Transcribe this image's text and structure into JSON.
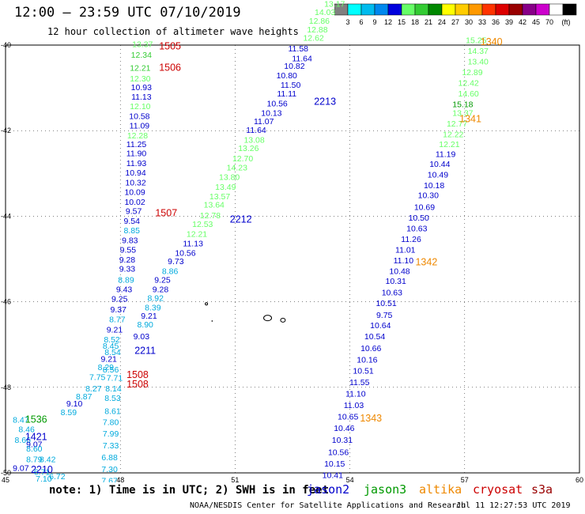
{
  "title": "12:00 – 23:59 UTC 07/10/2019",
  "subtitle": "12 hour collection of altimeter wave heights",
  "note": "note:  1) Time is in UTC; 2) SWH is in feet",
  "credit": "NOAA/NESDIS Center for Satellite Applications and Research",
  "timestamp": "Jul 11 12:27:53 UTC 2019",
  "satellites": [
    {
      "name": "jason2",
      "color": "#0000cc"
    },
    {
      "name": "jason3",
      "color": "#009900"
    },
    {
      "name": "altika",
      "color": "#ee8800"
    },
    {
      "name": "cryosat",
      "color": "#cc0000"
    },
    {
      "name": "s3a",
      "color": "#990000"
    }
  ],
  "colorbar": {
    "colors": [
      "#808080",
      "#00ffff",
      "#00bbee",
      "#0088ee",
      "#0000dd",
      "#66ff66",
      "#33cc33",
      "#008800",
      "#ffff00",
      "#ffcc00",
      "#ff9900",
      "#ff3300",
      "#dd0000",
      "#990000",
      "#880088",
      "#cc00cc",
      "#ffffff",
      "#000000"
    ],
    "labels": [
      "3",
      "6",
      "9",
      "12",
      "15",
      "18",
      "21",
      "24",
      "27",
      "30",
      "33",
      "36",
      "39",
      "42",
      "45",
      "70",
      "(ft)"
    ]
  },
  "chart_data": {
    "type": "scatter",
    "xlim": [
      45,
      60
    ],
    "ylim": [
      -50,
      -40
    ],
    "x_ticks": [
      "45",
      "48",
      "51",
      "54",
      "57",
      "60"
    ],
    "y_ticks": [
      "-40",
      "-42",
      "-44",
      "-46",
      "-48",
      "-50"
    ],
    "grid": true,
    "points": [
      {
        "lon": 48.58,
        "lat": -40.05,
        "v": "13.37",
        "c": "#66ff66"
      },
      {
        "lon": 48.55,
        "lat": -40.3,
        "v": "12.34",
        "c": "#33cc33"
      },
      {
        "lon": 48.52,
        "lat": -40.6,
        "v": "12.21",
        "c": "#33cc33"
      },
      {
        "lon": 48.52,
        "lat": -40.85,
        "v": "12.30",
        "c": "#66ff66"
      },
      {
        "lon": 48.55,
        "lat": -41.05,
        "v": "10.93",
        "c": "#0000cc"
      },
      {
        "lon": 48.55,
        "lat": -41.28,
        "v": "11.13",
        "c": "#0000cc"
      },
      {
        "lon": 48.52,
        "lat": -41.5,
        "v": "12.10",
        "c": "#66ff66"
      },
      {
        "lon": 48.5,
        "lat": -41.73,
        "v": "10.58",
        "c": "#0000cc"
      },
      {
        "lon": 48.5,
        "lat": -41.95,
        "v": "11.09",
        "c": "#0000cc"
      },
      {
        "lon": 48.45,
        "lat": -42.18,
        "v": "12.28",
        "c": "#66ff66"
      },
      {
        "lon": 48.42,
        "lat": -42.38,
        "v": "11.25",
        "c": "#0000cc"
      },
      {
        "lon": 48.42,
        "lat": -42.6,
        "v": "11.90",
        "c": "#0000cc"
      },
      {
        "lon": 48.42,
        "lat": -42.83,
        "v": "11.93",
        "c": "#0000cc"
      },
      {
        "lon": 48.4,
        "lat": -43.05,
        "v": "10.94",
        "c": "#0000cc"
      },
      {
        "lon": 48.4,
        "lat": -43.28,
        "v": "10.32",
        "c": "#0000cc"
      },
      {
        "lon": 48.38,
        "lat": -43.5,
        "v": "10.09",
        "c": "#0000cc"
      },
      {
        "lon": 48.38,
        "lat": -43.73,
        "v": "10.02",
        "c": "#0000cc"
      },
      {
        "lon": 48.35,
        "lat": -43.95,
        "v": "9.57",
        "c": "#0000cc"
      },
      {
        "lon": 48.3,
        "lat": -44.18,
        "v": "9.54",
        "c": "#0000cc"
      },
      {
        "lon": 48.3,
        "lat": -44.4,
        "v": "8.85",
        "c": "#00aadd"
      },
      {
        "lon": 48.25,
        "lat": -44.63,
        "v": "9.83",
        "c": "#0000cc"
      },
      {
        "lon": 48.2,
        "lat": -44.85,
        "v": "9.55",
        "c": "#0000cc"
      },
      {
        "lon": 48.18,
        "lat": -45.08,
        "v": "9.28",
        "c": "#0000cc"
      },
      {
        "lon": 48.18,
        "lat": -45.3,
        "v": "9.33",
        "c": "#0000cc"
      },
      {
        "lon": 48.15,
        "lat": -45.55,
        "v": "8.89",
        "c": "#00aadd"
      },
      {
        "lon": 48.1,
        "lat": -45.78,
        "v": "9.43",
        "c": "#0000cc"
      },
      {
        "lon": 47.98,
        "lat": -46.0,
        "v": "9.25",
        "c": "#0000cc"
      },
      {
        "lon": 47.95,
        "lat": -46.25,
        "v": "9.37",
        "c": "#0000cc"
      },
      {
        "lon": 47.92,
        "lat": -46.48,
        "v": "8.77",
        "c": "#00aadd"
      },
      {
        "lon": 47.85,
        "lat": -46.72,
        "v": "9.21",
        "c": "#0000cc"
      },
      {
        "lon": 47.78,
        "lat": -46.95,
        "v": "8.52",
        "c": "#00aadd"
      },
      {
        "lon": 47.75,
        "lat": -47.1,
        "v": "8.45",
        "c": "#00aadd"
      },
      {
        "lon": 47.8,
        "lat": -47.25,
        "v": "8.54",
        "c": "#00aadd"
      },
      {
        "lon": 47.7,
        "lat": -47.4,
        "v": "9.21",
        "c": "#0000cc"
      },
      {
        "lon": 47.62,
        "lat": -47.6,
        "v": "8.29",
        "c": "#00aadd"
      },
      {
        "lon": 47.75,
        "lat": -47.65,
        "v": "8.56",
        "c": "#00aadd"
      },
      {
        "lon": 47.85,
        "lat": -47.85,
        "v": "7.71",
        "c": "#00aadd"
      },
      {
        "lon": 47.4,
        "lat": -47.83,
        "v": "7.75",
        "c": "#00aadd"
      },
      {
        "lon": 47.3,
        "lat": -48.1,
        "v": "8.27",
        "c": "#00aadd"
      },
      {
        "lon": 47.82,
        "lat": -48.1,
        "v": "8.14",
        "c": "#00aadd"
      },
      {
        "lon": 47.05,
        "lat": -48.28,
        "v": "8.87",
        "c": "#00aadd"
      },
      {
        "lon": 46.8,
        "lat": -48.45,
        "v": "9.10",
        "c": "#0000cc"
      },
      {
        "lon": 47.8,
        "lat": -48.32,
        "v": "8.53",
        "c": "#00aadd"
      },
      {
        "lon": 46.65,
        "lat": -48.65,
        "v": "8.59",
        "c": "#00aadd"
      },
      {
        "lon": 47.8,
        "lat": -48.62,
        "v": "8.61",
        "c": "#00aadd"
      },
      {
        "lon": 47.75,
        "lat": -48.88,
        "v": "7.80",
        "c": "#00aadd"
      },
      {
        "lon": 47.75,
        "lat": -49.15,
        "v": "7.99",
        "c": "#00aadd"
      },
      {
        "lon": 47.75,
        "lat": -49.43,
        "v": "7.33",
        "c": "#00aadd"
      },
      {
        "lon": 47.72,
        "lat": -49.7,
        "v": "6.88",
        "c": "#00aadd"
      },
      {
        "lon": 47.72,
        "lat": -49.98,
        "v": "7.30",
        "c": "#00aadd"
      },
      {
        "lon": 47.72,
        "lat": -50.25,
        "v": "7.67",
        "c": "#00aadd"
      },
      {
        "lon": 45.4,
        "lat": -48.83,
        "v": "8.47",
        "c": "#00aadd"
      },
      {
        "lon": 45.55,
        "lat": -49.05,
        "v": "8.46",
        "c": "#00aadd"
      },
      {
        "lon": 45.45,
        "lat": -49.3,
        "v": "8.66",
        "c": "#00aadd"
      },
      {
        "lon": 45.75,
        "lat": -49.4,
        "v": "9.07",
        "c": "#0000cc"
      },
      {
        "lon": 45.75,
        "lat": -49.5,
        "v": "8.60",
        "c": "#00aadd"
      },
      {
        "lon": 45.75,
        "lat": -49.75,
        "v": "8.79",
        "c": "#00aadd"
      },
      {
        "lon": 46.1,
        "lat": -49.75,
        "v": "8.42",
        "c": "#00aadd"
      },
      {
        "lon": 45.4,
        "lat": -49.95,
        "v": "9.07",
        "c": "#0000cc"
      },
      {
        "lon": 45.95,
        "lat": -50.05,
        "v": "6.71",
        "c": "#00aadd"
      },
      {
        "lon": 46.35,
        "lat": -50.15,
        "v": "6.72",
        "c": "#00aadd"
      },
      {
        "lon": 46.0,
        "lat": -50.2,
        "v": "7.10",
        "c": "#00aadd"
      },
      {
        "lon": 46.25,
        "lat": -50.35,
        "v": "6.80",
        "c": "#00aadd"
      },
      {
        "lon": 46.2,
        "lat": -50.42,
        "v": "6.99",
        "c": "#00aadd"
      },
      {
        "lon": 48.85,
        "lat": -46.2,
        "v": "8.39",
        "c": "#00aadd"
      },
      {
        "lon": 48.92,
        "lat": -45.98,
        "v": "8.92",
        "c": "#00aadd"
      },
      {
        "lon": 48.65,
        "lat": -46.6,
        "v": "8.90",
        "c": "#00aadd"
      },
      {
        "lon": 48.55,
        "lat": -46.88,
        "v": "9.03",
        "c": "#0000cc"
      },
      {
        "lon": 48.75,
        "lat": -46.4,
        "v": "9.21",
        "c": "#0000cc"
      },
      {
        "lon": 49.05,
        "lat": -45.78,
        "v": "9.28",
        "c": "#0000cc"
      },
      {
        "lon": 49.1,
        "lat": -45.55,
        "v": "9.25",
        "c": "#0000cc"
      },
      {
        "lon": 49.3,
        "lat": -45.35,
        "v": "8.86",
        "c": "#00aadd"
      },
      {
        "lon": 49.45,
        "lat": -45.12,
        "v": "9.73",
        "c": "#0000cc"
      },
      {
        "lon": 49.7,
        "lat": -44.93,
        "v": "10.56",
        "c": "#0000cc"
      },
      {
        "lon": 49.9,
        "lat": -44.7,
        "v": "11.13",
        "c": "#0000cc"
      },
      {
        "lon": 50.0,
        "lat": -44.48,
        "v": "12.21",
        "c": "#66ff66"
      },
      {
        "lon": 50.15,
        "lat": -44.25,
        "v": "12.53",
        "c": "#66ff66"
      },
      {
        "lon": 50.35,
        "lat": -44.05,
        "v": "12.78",
        "c": "#66ff66"
      },
      {
        "lon": 50.45,
        "lat": -43.8,
        "v": "13.64",
        "c": "#66ff66"
      },
      {
        "lon": 50.6,
        "lat": -43.6,
        "v": "13.57",
        "c": "#66ff66"
      },
      {
        "lon": 50.75,
        "lat": -43.38,
        "v": "13.49",
        "c": "#66ff66"
      },
      {
        "lon": 50.85,
        "lat": -43.15,
        "v": "13.80",
        "c": "#66ff66"
      },
      {
        "lon": 51.05,
        "lat": -42.93,
        "v": "14.23",
        "c": "#66ff66"
      },
      {
        "lon": 51.2,
        "lat": -42.72,
        "v": "12.70",
        "c": "#66ff66"
      },
      {
        "lon": 51.35,
        "lat": -42.48,
        "v": "13.26",
        "c": "#66ff66"
      },
      {
        "lon": 51.5,
        "lat": -42.28,
        "v": "13.08",
        "c": "#66ff66"
      },
      {
        "lon": 51.55,
        "lat": -42.05,
        "v": "11.64",
        "c": "#0000cc"
      },
      {
        "lon": 51.75,
        "lat": -41.85,
        "v": "11.07",
        "c": "#0000cc"
      },
      {
        "lon": 51.95,
        "lat": -41.65,
        "v": "10.13",
        "c": "#0000cc"
      },
      {
        "lon": 52.1,
        "lat": -41.43,
        "v": "10.56",
        "c": "#0000cc"
      },
      {
        "lon": 52.35,
        "lat": -41.2,
        "v": "11.11",
        "c": "#0000cc"
      },
      {
        "lon": 52.45,
        "lat": -41.0,
        "v": "11.50",
        "c": "#0000cc"
      },
      {
        "lon": 52.35,
        "lat": -40.78,
        "v": "10.80",
        "c": "#0000cc"
      },
      {
        "lon": 52.55,
        "lat": -40.55,
        "v": "10.82",
        "c": "#0000cc"
      },
      {
        "lon": 52.75,
        "lat": -40.38,
        "v": "11.64",
        "c": "#0000cc"
      },
      {
        "lon": 52.65,
        "lat": -40.15,
        "v": "11.58",
        "c": "#0000cc"
      },
      {
        "lon": 53.05,
        "lat": -39.9,
        "v": "12.62",
        "c": "#66ff66"
      },
      {
        "lon": 53.15,
        "lat": -39.7,
        "v": "12.88",
        "c": "#66ff66"
      },
      {
        "lon": 53.2,
        "lat": -39.5,
        "v": "12.86",
        "c": "#66ff66"
      },
      {
        "lon": 53.35,
        "lat": -39.3,
        "v": "14.03",
        "c": "#66ff66"
      },
      {
        "lon": 53.6,
        "lat": -39.1,
        "v": "13.17",
        "c": "#66ff66"
      },
      {
        "lon": 57.3,
        "lat": -39.95,
        "v": "15.25",
        "c": "#66ff66"
      },
      {
        "lon": 57.35,
        "lat": -40.2,
        "v": "14.37",
        "c": "#66ff66"
      },
      {
        "lon": 57.35,
        "lat": -40.45,
        "v": "13.40",
        "c": "#66ff66"
      },
      {
        "lon": 57.2,
        "lat": -40.7,
        "v": "12.89",
        "c": "#66ff66"
      },
      {
        "lon": 57.1,
        "lat": -40.95,
        "v": "12.42",
        "c": "#66ff66"
      },
      {
        "lon": 57.1,
        "lat": -41.2,
        "v": "14.60",
        "c": "#66ff66"
      },
      {
        "lon": 56.95,
        "lat": -41.45,
        "v": "15.18",
        "c": "#009900"
      },
      {
        "lon": 56.95,
        "lat": -41.65,
        "v": "13.37",
        "c": "#66ff66"
      },
      {
        "lon": 56.8,
        "lat": -41.9,
        "v": "12.77",
        "c": "#66ff66"
      },
      {
        "lon": 56.7,
        "lat": -42.15,
        "v": "12.22",
        "c": "#66ff66"
      },
      {
        "lon": 56.6,
        "lat": -42.38,
        "v": "12.21",
        "c": "#66ff66"
      },
      {
        "lon": 56.5,
        "lat": -42.62,
        "v": "11.19",
        "c": "#0000cc"
      },
      {
        "lon": 56.35,
        "lat": -42.85,
        "v": "10.44",
        "c": "#0000cc"
      },
      {
        "lon": 56.3,
        "lat": -43.1,
        "v": "10.49",
        "c": "#0000cc"
      },
      {
        "lon": 56.2,
        "lat": -43.35,
        "v": "10.18",
        "c": "#0000cc"
      },
      {
        "lon": 56.05,
        "lat": -43.58,
        "v": "10.30",
        "c": "#0000cc"
      },
      {
        "lon": 55.95,
        "lat": -43.85,
        "v": "10.69",
        "c": "#0000cc"
      },
      {
        "lon": 55.8,
        "lat": -44.1,
        "v": "10.50",
        "c": "#0000cc"
      },
      {
        "lon": 55.75,
        "lat": -44.35,
        "v": "10.63",
        "c": "#0000cc"
      },
      {
        "lon": 55.6,
        "lat": -44.6,
        "v": "11.26",
        "c": "#0000cc"
      },
      {
        "lon": 55.45,
        "lat": -44.85,
        "v": "11.01",
        "c": "#0000cc"
      },
      {
        "lon": 55.4,
        "lat": -45.1,
        "v": "11.10",
        "c": "#0000cc"
      },
      {
        "lon": 55.3,
        "lat": -45.35,
        "v": "10.48",
        "c": "#0000cc"
      },
      {
        "lon": 55.2,
        "lat": -45.58,
        "v": "10.31",
        "c": "#0000cc"
      },
      {
        "lon": 55.1,
        "lat": -45.85,
        "v": "10.63",
        "c": "#0000cc"
      },
      {
        "lon": 54.95,
        "lat": -46.1,
        "v": "10.51",
        "c": "#0000cc"
      },
      {
        "lon": 54.9,
        "lat": -46.38,
        "v": "9.75",
        "c": "#0000cc"
      },
      {
        "lon": 54.8,
        "lat": -46.62,
        "v": "10.64",
        "c": "#0000cc"
      },
      {
        "lon": 54.65,
        "lat": -46.88,
        "v": "10.54",
        "c": "#0000cc"
      },
      {
        "lon": 54.55,
        "lat": -47.15,
        "v": "10.66",
        "c": "#0000cc"
      },
      {
        "lon": 54.45,
        "lat": -47.42,
        "v": "10.16",
        "c": "#0000cc"
      },
      {
        "lon": 54.35,
        "lat": -47.68,
        "v": "10.51",
        "c": "#0000cc"
      },
      {
        "lon": 54.25,
        "lat": -47.95,
        "v": "11.55",
        "c": "#0000cc"
      },
      {
        "lon": 54.15,
        "lat": -48.22,
        "v": "11.10",
        "c": "#0000cc"
      },
      {
        "lon": 54.1,
        "lat": -48.48,
        "v": "11.03",
        "c": "#0000cc"
      },
      {
        "lon": 53.95,
        "lat": -48.75,
        "v": "10.65",
        "c": "#0000cc"
      },
      {
        "lon": 53.85,
        "lat": -49.02,
        "v": "10.46",
        "c": "#0000cc"
      },
      {
        "lon": 53.8,
        "lat": -49.3,
        "v": "10.31",
        "c": "#0000cc"
      },
      {
        "lon": 53.7,
        "lat": -49.58,
        "v": "10.56",
        "c": "#0000cc"
      },
      {
        "lon": 53.6,
        "lat": -49.85,
        "v": "10.15",
        "c": "#0000cc"
      },
      {
        "lon": 53.55,
        "lat": -50.12,
        "v": "10.41",
        "c": "#0000cc"
      }
    ],
    "annotations": [
      {
        "lon": 49.3,
        "lat": -40.1,
        "t": "1505",
        "c": "#cc0000"
      },
      {
        "lon": 49.3,
        "lat": -40.6,
        "t": "1506",
        "c": "#cc0000"
      },
      {
        "lon": 49.2,
        "lat": -44.0,
        "t": "1507",
        "c": "#cc0000"
      },
      {
        "lon": 48.45,
        "lat": -47.78,
        "t": "1508",
        "c": "#cc0000"
      },
      {
        "lon": 48.45,
        "lat": -48.0,
        "t": "1508",
        "c": "#cc0000"
      },
      {
        "lon": 45.8,
        "lat": -48.83,
        "t": "1536",
        "c": "#009900"
      },
      {
        "lon": 45.8,
        "lat": -49.23,
        "t": "1421",
        "c": "#0000cc"
      },
      {
        "lon": 45.95,
        "lat": -50.0,
        "t": "2210",
        "c": "#0000cc"
      },
      {
        "lon": 48.65,
        "lat": -47.22,
        "t": "2211",
        "c": "#0000cc"
      },
      {
        "lon": 51.15,
        "lat": -44.15,
        "t": "2212",
        "c": "#0000cc"
      },
      {
        "lon": 53.35,
        "lat": -41.4,
        "t": "2213",
        "c": "#0000cc"
      },
      {
        "lon": 57.7,
        "lat": -40.0,
        "t": "1340",
        "c": "#ee8800"
      },
      {
        "lon": 57.15,
        "lat": -41.8,
        "t": "1341",
        "c": "#ee8800"
      },
      {
        "lon": 56.0,
        "lat": -45.15,
        "t": "1342",
        "c": "#ee8800"
      },
      {
        "lon": 54.55,
        "lat": -48.8,
        "t": "1343",
        "c": "#ee8800"
      }
    ]
  }
}
